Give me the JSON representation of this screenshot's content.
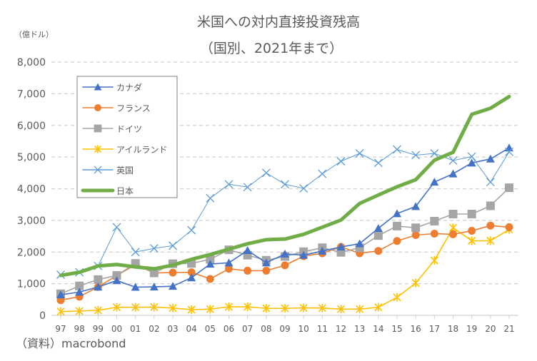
{
  "chart_data": {
    "type": "line",
    "title": "米国への対内直接投資残高",
    "subtitle": "（国別、2021年まで）",
    "ylabel": "（億ドル）",
    "xlabel": "",
    "source": "（資料）macrobond",
    "ylim": [
      0,
      8000
    ],
    "yticks": [
      0,
      1000,
      2000,
      3000,
      4000,
      5000,
      6000,
      7000,
      8000
    ],
    "ytick_labels": [
      "0",
      "1,000",
      "2,000",
      "3,000",
      "4,000",
      "5,000",
      "6,000",
      "7,000",
      "8,000"
    ],
    "grid": true,
    "legend_position": "top-left",
    "categories": [
      "97",
      "98",
      "99",
      "00",
      "01",
      "02",
      "03",
      "04",
      "05",
      "06",
      "07",
      "08",
      "09",
      "10",
      "11",
      "12",
      "13",
      "14",
      "15",
      "16",
      "17",
      "18",
      "19",
      "20",
      "21"
    ],
    "series": [
      {
        "name": "カナダ",
        "color": "#4472C4",
        "marker": "triangle",
        "values": [
          650,
          735,
          895,
          1100,
          890,
          900,
          920,
          1190,
          1620,
          1660,
          2050,
          1660,
          1940,
          1900,
          2030,
          2160,
          2265,
          2750,
          3215,
          3440,
          4210,
          4470,
          4815,
          4940,
          5290
        ]
      },
      {
        "name": "フランス",
        "color": "#ED7D31",
        "marker": "circle",
        "values": [
          480,
          590,
          895,
          1260,
          1600,
          1340,
          1350,
          1360,
          1150,
          1470,
          1410,
          1410,
          1580,
          1870,
          1960,
          2160,
          1960,
          2035,
          2350,
          2535,
          2580,
          2560,
          2670,
          2835,
          2785
        ]
      },
      {
        "name": "ドイツ",
        "color": "#A5A5A5",
        "marker": "square",
        "values": [
          680,
          930,
          1130,
          1260,
          1640,
          1340,
          1630,
          1640,
          1770,
          2070,
          1900,
          1740,
          1860,
          2010,
          2135,
          1990,
          2135,
          2520,
          2820,
          2765,
          2975,
          3200,
          3200,
          3460,
          4030
        ]
      },
      {
        "name": "アイルランド",
        "color": "#FFC000",
        "marker": "star",
        "values": [
          120,
          135,
          160,
          255,
          255,
          260,
          230,
          180,
          195,
          270,
          270,
          220,
          220,
          235,
          230,
          195,
          195,
          255,
          570,
          1020,
          1735,
          2765,
          2355,
          2355,
          2710
        ]
      },
      {
        "name": "英国",
        "color": "#5B9BD5",
        "marker": "x",
        "values": [
          1285,
          1360,
          1560,
          2785,
          2000,
          2115,
          2200,
          2690,
          3700,
          4140,
          4050,
          4500,
          4140,
          4010,
          4470,
          4865,
          5115,
          4815,
          5240,
          5060,
          5115,
          4890,
          5015,
          4210,
          5165
        ]
      },
      {
        "name": "日本",
        "color": "#70AD47",
        "marker": "none",
        "thick": true,
        "values": [
          1260,
          1360,
          1560,
          1605,
          1530,
          1470,
          1585,
          1770,
          1920,
          2090,
          2260,
          2390,
          2410,
          2560,
          2785,
          3010,
          3535,
          3800,
          4060,
          4285,
          4900,
          5150,
          6350,
          6540,
          6910
        ]
      }
    ]
  }
}
